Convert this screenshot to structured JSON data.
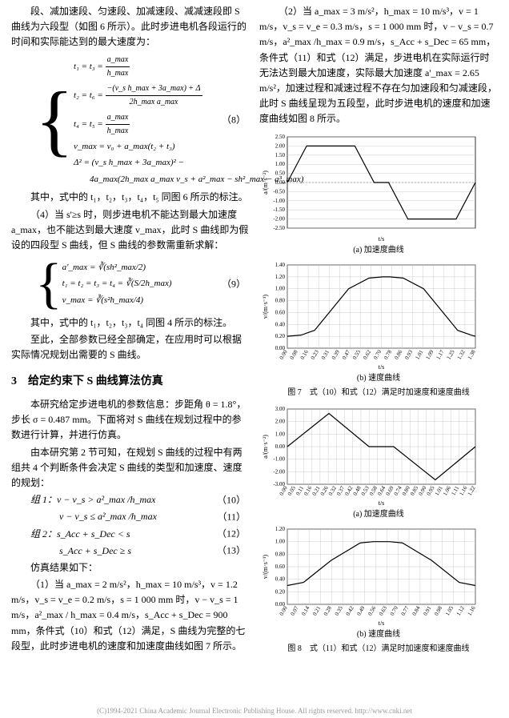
{
  "leftCol": {
    "intro1": "段、减加速段、匀速段、加减速段、减减速段即 S 曲线为六段型（如图 6 所示）。此时步进电机各段运行的时间和实际能达到的最大速度为：",
    "eq8_num": "（8）",
    "eq8_line1_lhs": "t₁ = t₃ =",
    "eq8_line1_frac_num": "a_max",
    "eq8_line1_frac_den": "h_max",
    "eq8_line2_lhs": "t₂ = t₆ =",
    "eq8_line2_frac_num": "−(v_s h_max + 3a_max) + Δ",
    "eq8_line2_frac_den": "2h_max a_max",
    "eq8_line3_lhs": "t₄ = t₅ =",
    "eq8_line3_frac_num": "a_max",
    "eq8_line3_frac_den": "h_max",
    "eq8_line4": "v_max = v₀ + a_max(t₂ + t₃)",
    "eq8_line5": "Δ² = (v_s h_max + 3a_max)² −",
    "eq8_line6": "4a_max(2h_max a_max v_s + a²_max − sh²_max − a³_max)",
    "note1": "其中，式中的 t₁，t₂，t₃，t₄，t₅ 同图 6 所示的标注。",
    "para4": "（4）当 s'≥s 时，则步进电机不能达到最大加速度 a_max，也不能达到最大速度 v_max，此时 S 曲线即为假设的四段型 S 曲线，但 S 曲线的参数需重新求解：",
    "eq9_num": "（9）",
    "eq9_line1": "a'_max = ∛(sh²_max/2)",
    "eq9_line2": "t₁ = t₂ = t₃ = t₄ = ∛(S/2h_max)",
    "eq9_line3": "v_max = ∛(s²h_max/4)",
    "note2": "其中，式中的 t₁，t₂，t₃，t₄ 同图 4 所示的标注。",
    "para5": "至此，全部参数已经全部确定，在应用时可以根据实际情况规划出需要的 S 曲线。",
    "section3": "3　给定约束下 S 曲线算法仿真",
    "para6": "本研究给定步进电机的参数信息：步距角 θ = 1.8°，步长 σ = 0.487 mm。下面将对 S 曲线在规划过程中的参数进行计算，并进行仿真。",
    "para7": "由本研究第 2 节可知，在规划 S 曲线的过程中有两组共 4 个判断条件会决定 S 曲线的类型和加速度、速度的规划：",
    "group1": "组 1：v − v_s > a²_max /h_max",
    "eq10_num": "（10）",
    "eq11": "v − v_s ≤ a²_max /h_max",
    "eq11_num": "（11）",
    "group2": "组 2：s_Acc + s_Dec < s",
    "eq12_num": "（12）",
    "eq13": "s_Acc + s_Dec ≥ s",
    "eq13_num": "（13）",
    "para8": "仿真结果如下：",
    "para9": "（1）当 a_max = 2 m/s²，h_max = 10 m/s³，v = 1.2 m/s，v_s = v_e = 0.2 m/s，s = 1 000 mm 时，v − v_s = 1 m/s，a²_max / h_max = 0.4 m/s，s_Acc + s_Dec = 900 mm，条件式（10）和式（12）满足，S 曲线为完整的七段型，此时步进电机的速度和加速度曲线如图 7 所示。"
  },
  "rightCol": {
    "para1": "（2）当 a_max = 3 m/s²，h_max = 10 m/s³，v = 1 m/s，v_s = v_e = 0.3 m/s，s = 1 000 mm 时，v − v_s = 0.7 m/s，a²_max /h_max = 0.9 m/s，s_Acc + s_Dec = 65 mm，条件式（11）和式（12）满足，步进电机在实际运行时无法达到最大加速度，实际最大加速度 a'_max = 2.65 m/s²，加速过程和减速过程不存在匀加速段和匀减速段，此时 S 曲线呈现为五段型，此时步进电机的速度和加速度曲线如图 8 所示。",
    "fig7_caption": "图 7　式（10）和式（12）满足时加速度和速度曲线",
    "fig7a_sub": "(a) 加速度曲线",
    "fig7b_sub": "(b) 速度曲线",
    "fig8_caption": "图 8　式（11）和式（12）满足时加速度和速度曲线",
    "fig8a_sub": "(a) 加速度曲线",
    "fig8b_sub": "(b) 速度曲线"
  },
  "charts": {
    "fig7a": {
      "type": "line",
      "ylim": [
        -2.5,
        2.5
      ],
      "yticks": [
        -2.5,
        -2.0,
        -1.5,
        -1.0,
        -0.5,
        0.0,
        0.5,
        1.0,
        1.5,
        2.0,
        2.5
      ],
      "xlabel": "t/s",
      "ylabel": "a/(m·s⁻²)",
      "line_color": "#000000",
      "zero_line_color": "#808080",
      "grid_color": "#c0c0c0",
      "background": "#ffffff",
      "data": [
        [
          0,
          0
        ],
        [
          0.2,
          2
        ],
        [
          0.7,
          2
        ],
        [
          0.9,
          0
        ],
        [
          1.05,
          0
        ],
        [
          1.25,
          -2
        ],
        [
          1.75,
          -2
        ],
        [
          1.95,
          0
        ]
      ]
    },
    "fig7b": {
      "type": "line",
      "ylim": [
        0,
        1.4
      ],
      "yticks": [
        0.0,
        0.2,
        0.4,
        0.6,
        0.8,
        1.0,
        1.2,
        1.4
      ],
      "xticks": [
        "0.00",
        "0.08",
        "0.16",
        "0.23",
        "0.31",
        "0.39",
        "0.47",
        "0.55",
        "0.62",
        "0.70",
        "0.78",
        "0.86",
        "0.93",
        "1.01",
        "1.09",
        "1.17",
        "1.25",
        "1.32",
        "1.38"
      ],
      "xlabel": "t/s",
      "ylabel": "v/(m·s⁻¹)",
      "line_color": "#000000",
      "grid_color": "#c0c0c0",
      "background": "#ffffff",
      "data": [
        [
          0,
          0.2
        ],
        [
          0.1,
          0.22
        ],
        [
          0.2,
          0.3
        ],
        [
          0.45,
          1.0
        ],
        [
          0.6,
          1.18
        ],
        [
          0.7,
          1.2
        ],
        [
          0.75,
          1.2
        ],
        [
          0.85,
          1.18
        ],
        [
          1.0,
          1.0
        ],
        [
          1.25,
          0.3
        ],
        [
          1.35,
          0.22
        ],
        [
          1.38,
          0.2
        ]
      ]
    },
    "fig8a": {
      "type": "line",
      "ylim": [
        -3,
        3
      ],
      "yticks": [
        -3,
        -2,
        -1,
        0,
        1,
        2,
        3
      ],
      "xticks": [
        "0.00",
        "0.05",
        "0.11",
        "0.16",
        "0.21",
        "0.26",
        "0.32",
        "0.37",
        "0.42",
        "0.48",
        "0.53",
        "0.58",
        "0.64",
        "0.69",
        "0.74",
        "0.80",
        "0.85",
        "0.90",
        "0.95",
        "1.01",
        "1.06",
        "1.11",
        "1.16",
        "1.22"
      ],
      "xlabel": "t/s",
      "ylabel": "a/(m·s⁻²)",
      "line_color": "#000000",
      "grid_color": "#c0c0c0",
      "background": "#ffffff",
      "data": [
        [
          0,
          0
        ],
        [
          0.27,
          2.65
        ],
        [
          0.53,
          0
        ],
        [
          0.69,
          0
        ],
        [
          0.96,
          -2.65
        ],
        [
          1.22,
          0
        ]
      ]
    },
    "fig8b": {
      "type": "line",
      "ylim": [
        0,
        1.2
      ],
      "yticks": [
        0.0,
        0.2,
        0.4,
        0.6,
        0.8,
        1.0,
        1.2
      ],
      "xticks": [
        "0.00",
        "0.07",
        "0.14",
        "0.21",
        "0.28",
        "0.35",
        "0.42",
        "0.49",
        "0.56",
        "0.63",
        "0.70",
        "0.77",
        "0.84",
        "0.91",
        "0.98",
        "1.05",
        "1.12",
        "1.16"
      ],
      "xlabel": "t/s",
      "ylabel": "v/(m·s⁻¹)",
      "line_color": "#000000",
      "grid_color": "#c0c0c0",
      "background": "#ffffff",
      "data": [
        [
          0,
          0.3
        ],
        [
          0.1,
          0.35
        ],
        [
          0.27,
          0.7
        ],
        [
          0.45,
          0.98
        ],
        [
          0.53,
          1.0
        ],
        [
          0.63,
          1.0
        ],
        [
          0.71,
          0.98
        ],
        [
          0.89,
          0.7
        ],
        [
          1.06,
          0.35
        ],
        [
          1.16,
          0.3
        ]
      ]
    }
  },
  "footer": "(C)1994-2021 China Academic Journal Electronic Publishing House. All rights reserved.    http://www.cnki.net"
}
